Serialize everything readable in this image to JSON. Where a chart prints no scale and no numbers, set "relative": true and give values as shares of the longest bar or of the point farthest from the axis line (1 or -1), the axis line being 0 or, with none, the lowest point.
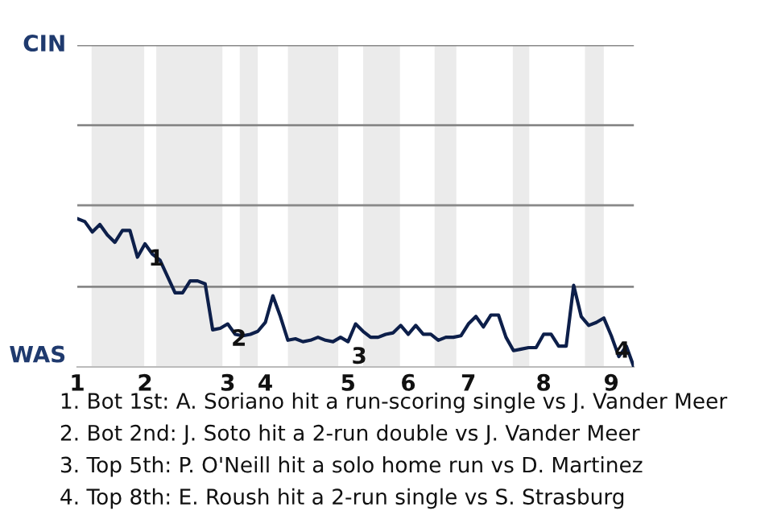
{
  "chart_data": {
    "type": "line",
    "relative": true,
    "categories": [
      "1",
      null,
      null,
      null,
      null,
      null,
      null,
      null,
      null,
      "2",
      null,
      null,
      null,
      null,
      null,
      null,
      null,
      null,
      null,
      null,
      "3",
      null,
      null,
      null,
      null,
      "4",
      null,
      null,
      null,
      null,
      null,
      null,
      null,
      null,
      null,
      null,
      "5",
      null,
      null,
      null,
      null,
      null,
      null,
      null,
      "6",
      null,
      null,
      null,
      null,
      null,
      null,
      null,
      "7",
      null,
      null,
      null,
      null,
      null,
      null,
      null,
      null,
      null,
      "8",
      null,
      null,
      null,
      null,
      null,
      null,
      null,
      null,
      "9",
      null,
      null,
      null
    ],
    "series": [
      {
        "color": "#0d1f4a",
        "values": [
          1,
          0.98,
          0.91,
          0.96,
          0.89,
          0.84,
          0.92,
          0.92,
          0.74,
          0.83,
          0.76,
          0.72,
          0.61,
          0.5,
          0.5,
          0.58,
          0.58,
          0.56,
          0.25,
          0.26,
          0.29,
          0.22,
          0.21,
          0.22,
          0.24,
          0.3,
          0.48,
          0.34,
          0.18,
          0.19,
          0.17,
          0.18,
          0.2,
          0.18,
          0.17,
          0.2,
          0.17,
          0.29,
          0.24,
          0.2,
          0.2,
          0.22,
          0.23,
          0.28,
          0.22,
          0.28,
          0.22,
          0.22,
          0.18,
          0.2,
          0.2,
          0.21,
          0.29,
          0.34,
          0.27,
          0.35,
          0.35,
          0.2,
          0.11,
          0.12,
          0.13,
          0.13,
          0.22,
          0.22,
          0.14,
          0.14,
          0.55,
          0.34,
          0.28,
          0.3,
          0.33,
          0.21,
          0.07,
          0.14,
          0
        ],
        "line_style": "solid"
      }
    ],
    "ref_lines": [
      {
        "axis": "y",
        "value": 0.54,
        "color": "#888888"
      },
      {
        "axis": "y",
        "value": 1.09,
        "color": "#888888"
      },
      {
        "axis": "y",
        "value": 1.63,
        "color": "#888888"
      },
      {
        "axis": "y",
        "value": 2.17,
        "color": "#888888"
      }
    ],
    "marker": "none",
    "annotations": [
      "CIN",
      "WAS",
      {
        "text": "1",
        "x": "2",
        "y": 0.83
      },
      {
        "text": "2",
        "x": "3",
        "y": 0.29
      },
      {
        "text": "3",
        "x": "5",
        "y": 0.17
      },
      {
        "text": "4",
        "x": "9",
        "y": 0.21
      },
      "1. Bot 1st: A. Soriano hit a run-scoring single vs J. Vander Meer",
      "2. Bot 2nd: J. Soto hit a 2-run double vs J. Vander Meer",
      "3. Top 5th: P. O'Neill hit a solo home run vs D. Martinez",
      "4. Top 8th: E. Roush hit a 2-run single vs S. Strasburg"
    ]
  }
}
